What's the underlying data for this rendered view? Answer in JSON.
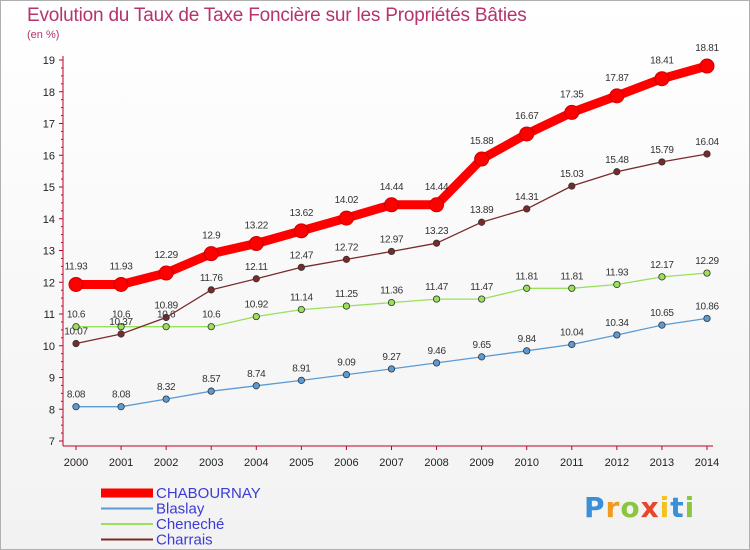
{
  "chart_data": {
    "type": "line",
    "title": "Evolution du Taux de Taxe Foncière sur les Propriétés Bâties",
    "unit_label": "(en %)",
    "x": [
      "2000",
      "2001",
      "2002",
      "2003",
      "2004",
      "2005",
      "2006",
      "2007",
      "2008",
      "2009",
      "2010",
      "2011",
      "2012",
      "2013",
      "2014"
    ],
    "ylim": [
      7,
      19
    ],
    "yticks": [
      "7",
      "8",
      "9",
      "10",
      "11",
      "12",
      "13",
      "14",
      "15",
      "16",
      "17",
      "18",
      "19"
    ],
    "grid": false,
    "legend_position": "bottom-left",
    "series": [
      {
        "name": "CHABOURNAY",
        "color": "#ff0000",
        "highlight": true,
        "values": [
          11.93,
          11.93,
          12.29,
          12.9,
          13.22,
          13.62,
          14.02,
          14.44,
          14.44,
          15.88,
          16.67,
          17.35,
          17.87,
          18.41,
          18.81
        ],
        "labels": [
          "11.93",
          "11.93",
          "12.29",
          "12.9",
          "13.22",
          "13.62",
          "14.02",
          "14.44",
          "14.44",
          "15.88",
          "16.67",
          "17.35",
          "17.87",
          "18.41",
          "18.81"
        ]
      },
      {
        "name": "Blaslay",
        "color": "#5b9bd5",
        "values": [
          8.08,
          8.08,
          8.32,
          8.57,
          8.74,
          8.91,
          9.09,
          9.27,
          9.46,
          9.65,
          9.84,
          10.04,
          10.34,
          10.65,
          10.86
        ],
        "labels": [
          "8.08",
          "8.08",
          "8.32",
          "8.57",
          "8.74",
          "8.91",
          "9.09",
          "9.27",
          "9.46",
          "9.65",
          "9.84",
          "10.04",
          "10.34",
          "10.65",
          "10.86"
        ]
      },
      {
        "name": "Cheneché",
        "color": "#99e05b",
        "values": [
          10.6,
          10.6,
          10.6,
          10.6,
          10.92,
          11.14,
          11.25,
          11.36,
          11.47,
          11.47,
          11.81,
          11.81,
          11.93,
          12.17,
          12.29
        ],
        "labels": [
          "10.6",
          "10.6",
          "10.6",
          "10.6",
          "10.92",
          "11.14",
          "11.25",
          "11.36",
          "11.47",
          "11.47",
          "11.81",
          "11.81",
          "11.93",
          "12.17",
          "12.29"
        ]
      },
      {
        "name": "Charrais",
        "color": "#7a2a2a",
        "values": [
          10.07,
          10.37,
          10.89,
          11.76,
          12.11,
          12.47,
          12.72,
          12.97,
          13.23,
          13.89,
          14.31,
          15.03,
          15.48,
          15.79,
          16.04
        ],
        "labels": [
          "10.07",
          "10.37",
          "10.89",
          "11.76",
          "12.11",
          "12.47",
          "12.72",
          "12.97",
          "13.23",
          "13.89",
          "14.31",
          "15.03",
          "15.48",
          "15.79",
          "16.04"
        ]
      }
    ]
  },
  "logo": {
    "letters": [
      "P",
      "r",
      "o",
      "x",
      "i",
      "t",
      "i"
    ],
    "colors": [
      "#3a8fd6",
      "#f29a1e",
      "#8cc63e",
      "#e8452c",
      "#f2c21e",
      "#3a8fd6",
      "#8cc63e"
    ]
  }
}
